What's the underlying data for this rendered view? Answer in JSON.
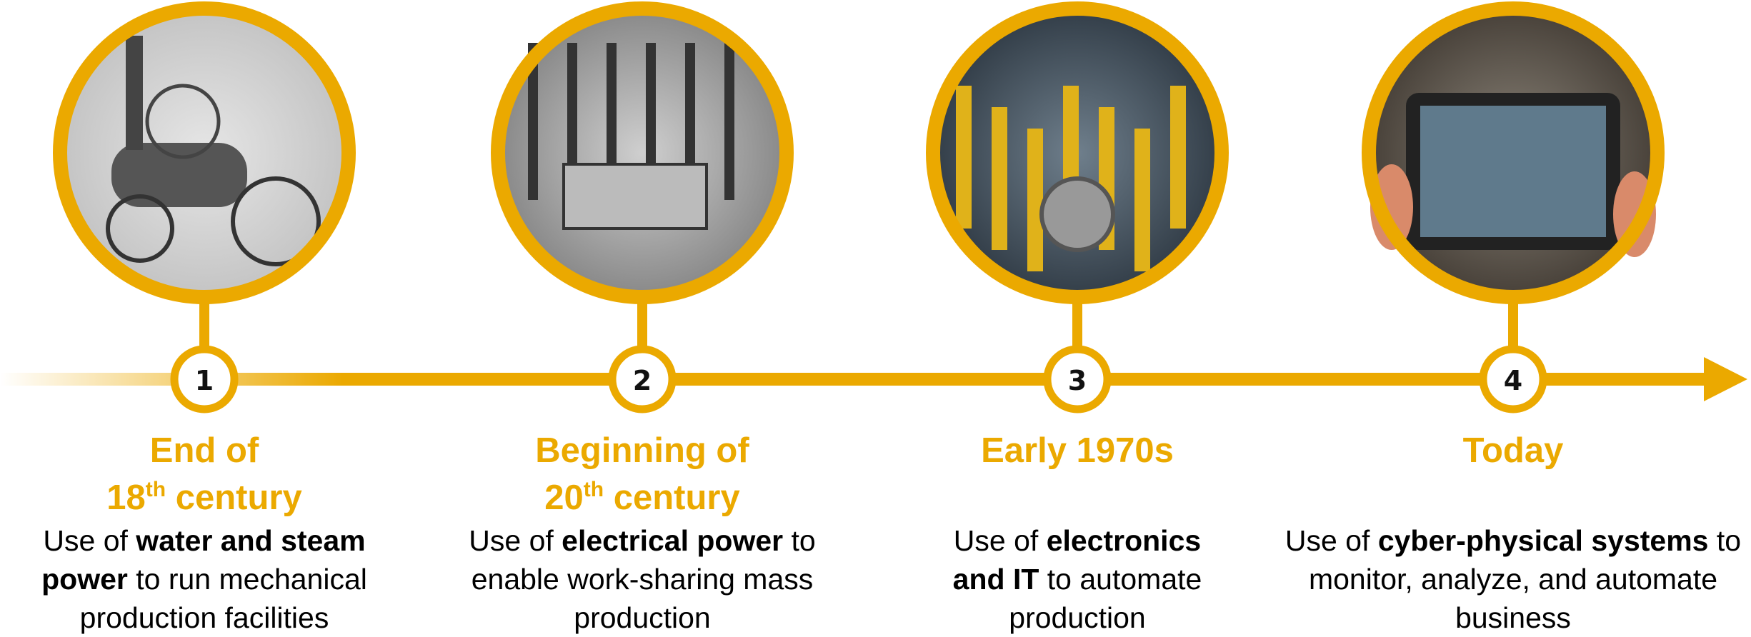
{
  "steps": [
    {
      "number": "1",
      "title_lines": [
        [
          {
            "text": "End of"
          }
        ],
        [
          {
            "text": "18"
          },
          {
            "text": "th",
            "sup": true
          },
          {
            "text": " century"
          }
        ]
      ],
      "description": [
        {
          "text": "Use of "
        },
        {
          "text": "water and steam power",
          "bold": true
        },
        {
          "text": " to run mechanical production facilities"
        }
      ]
    },
    {
      "number": "2",
      "title_lines": [
        [
          {
            "text": "Beginning of"
          }
        ],
        [
          {
            "text": "20"
          },
          {
            "text": "th",
            "sup": true
          },
          {
            "text": " century"
          }
        ]
      ],
      "description": [
        {
          "text": "Use of "
        },
        {
          "text": "electrical power",
          "bold": true
        },
        {
          "text": " to enable work-sharing mass production"
        }
      ]
    },
    {
      "number": "3",
      "title_lines": [
        [
          {
            "text": "Early 1970s"
          }
        ]
      ],
      "description": [
        {
          "text": "Use of "
        },
        {
          "text": "electronics and IT",
          "bold": true
        },
        {
          "text": " to automate production"
        }
      ]
    },
    {
      "number": "4",
      "title_lines": [
        [
          {
            "text": "Today"
          }
        ]
      ],
      "description": [
        {
          "text": "Use of "
        },
        {
          "text": "cyber-physical systems",
          "bold": true
        },
        {
          "text": " to monitor, analyze, and automate business"
        }
      ]
    }
  ]
}
